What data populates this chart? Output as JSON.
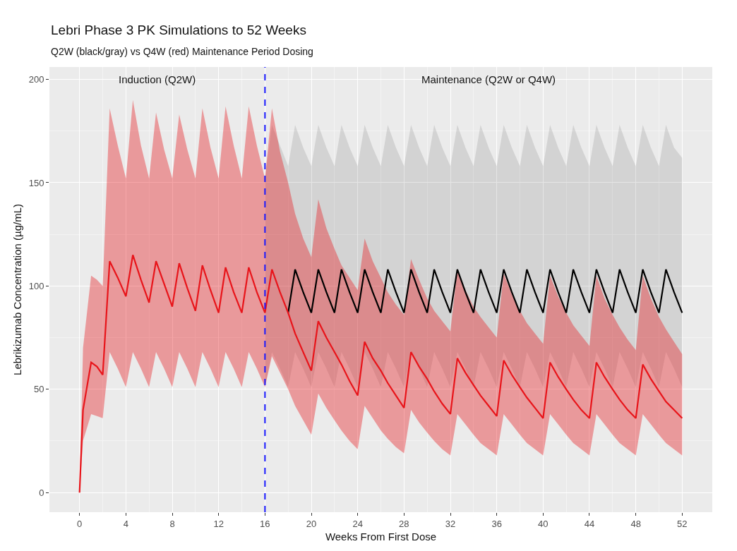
{
  "chart_data": {
    "type": "line",
    "title": "Lebri Phase 3 PK Simulations to 52 Weeks",
    "subtitle": "Q2W (black/gray) vs Q4W (red) Maintenance Period Dosing",
    "xlabel": "Weeks From First Dose",
    "ylabel": "Lebrikizumab Concentration (µg/mL)",
    "x": [
      0,
      0.3,
      1,
      1.5,
      2,
      2.6,
      3.3,
      4,
      4.6,
      5.3,
      6,
      6.6,
      7.3,
      8,
      8.6,
      9.3,
      10,
      10.6,
      11.3,
      12,
      12.6,
      13.3,
      14,
      14.6,
      15.3,
      16,
      16.6,
      17.3,
      18,
      18.6,
      19.3,
      20,
      20.6,
      21.3,
      22,
      22.6,
      23.3,
      24,
      24.6,
      25.3,
      26,
      26.6,
      27.3,
      28,
      28.6,
      29.3,
      30,
      30.6,
      31.3,
      32,
      32.6,
      33.3,
      34,
      34.6,
      35.3,
      36,
      36.6,
      37.3,
      38,
      38.6,
      39.3,
      40,
      40.6,
      41.3,
      42,
      42.6,
      43.3,
      44,
      44.6,
      45.3,
      46,
      46.6,
      47.3,
      48,
      48.6,
      49.3,
      50,
      50.6,
      51.3,
      52
    ],
    "series": [
      {
        "color": "#000000",
        "values": [
          null,
          null,
          null,
          null,
          null,
          null,
          null,
          null,
          null,
          null,
          null,
          null,
          null,
          null,
          null,
          null,
          null,
          null,
          null,
          null,
          null,
          null,
          null,
          null,
          null,
          null,
          null,
          null,
          87,
          108,
          97,
          87,
          108,
          97,
          87,
          108,
          97,
          87,
          108,
          97,
          87,
          108,
          97,
          87,
          108,
          97,
          87,
          108,
          97,
          87,
          108,
          97,
          87,
          108,
          97,
          87,
          108,
          97,
          87,
          108,
          97,
          87,
          108,
          97,
          87,
          108,
          97,
          87,
          108,
          97,
          87,
          108,
          97,
          87,
          108,
          97,
          87,
          108,
          97,
          87
        ],
        "upper": [
          null,
          null,
          null,
          null,
          null,
          null,
          null,
          null,
          null,
          null,
          null,
          null,
          null,
          null,
          null,
          null,
          null,
          null,
          null,
          null,
          null,
          null,
          null,
          null,
          null,
          152,
          178,
          168,
          158,
          178,
          167,
          158,
          178,
          167,
          158,
          178,
          167,
          158,
          178,
          167,
          158,
          178,
          167,
          158,
          178,
          167,
          158,
          178,
          167,
          158,
          178,
          167,
          158,
          178,
          167,
          158,
          178,
          167,
          158,
          178,
          167,
          158,
          178,
          167,
          158,
          178,
          167,
          158,
          178,
          167,
          158,
          178,
          167,
          158,
          178,
          167,
          158,
          178,
          167,
          162
        ],
        "lower": [
          null,
          null,
          null,
          null,
          null,
          null,
          null,
          null,
          null,
          null,
          null,
          null,
          null,
          null,
          null,
          null,
          null,
          null,
          null,
          null,
          null,
          null,
          null,
          null,
          null,
          51,
          68,
          60,
          51,
          68,
          60,
          51,
          68,
          60,
          51,
          68,
          60,
          51,
          68,
          60,
          51,
          68,
          60,
          51,
          68,
          60,
          51,
          68,
          60,
          51,
          68,
          60,
          51,
          68,
          60,
          51,
          68,
          60,
          51,
          68,
          60,
          51,
          68,
          60,
          51,
          68,
          60,
          51,
          68,
          60,
          51,
          68,
          60,
          51,
          68,
          60,
          51,
          68,
          60,
          51
        ]
      },
      {
        "color": "#e8141a",
        "values": [
          0,
          40,
          63,
          61,
          57,
          112,
          104,
          95,
          115,
          103,
          92,
          112,
          101,
          90,
          111,
          99,
          88,
          110,
          98,
          87,
          109,
          97,
          87,
          109,
          97,
          87,
          108,
          97,
          87,
          77,
          68,
          59,
          83,
          75,
          68,
          62,
          54,
          47,
          73,
          65,
          59,
          53,
          47,
          41,
          68,
          61,
          55,
          49,
          43,
          38,
          65,
          58,
          52,
          47,
          42,
          37,
          64,
          57,
          51,
          46,
          41,
          36,
          63,
          56,
          50,
          45,
          40,
          36,
          63,
          56,
          50,
          45,
          40,
          36,
          62,
          55,
          49,
          44,
          40,
          36
        ],
        "upper": [
          0,
          70,
          105,
          103,
          100,
          186,
          168,
          152,
          190,
          168,
          152,
          184,
          166,
          152,
          183,
          166,
          152,
          186,
          167,
          152,
          187,
          168,
          152,
          187,
          168,
          152,
          186,
          165,
          150,
          135,
          123,
          114,
          142,
          128,
          118,
          110,
          104,
          98,
          123,
          112,
          104,
          97,
          91,
          86,
          113,
          103,
          94,
          88,
          83,
          78,
          108,
          98,
          90,
          85,
          80,
          75,
          106,
          96,
          88,
          82,
          77,
          72,
          105,
          95,
          87,
          81,
          76,
          71,
          105,
          94,
          86,
          80,
          74,
          69,
          105,
          94,
          85,
          79,
          73,
          67
        ],
        "lower": [
          0,
          25,
          38,
          37,
          36,
          68,
          60,
          51,
          68,
          60,
          51,
          68,
          60,
          51,
          68,
          60,
          51,
          68,
          60,
          51,
          68,
          60,
          51,
          68,
          60,
          51,
          66,
          58,
          50,
          42,
          35,
          28,
          48,
          41,
          35,
          30,
          25,
          21,
          42,
          36,
          30,
          26,
          22,
          19,
          40,
          34,
          29,
          25,
          21,
          18,
          38,
          33,
          28,
          24,
          21,
          18,
          38,
          33,
          28,
          24,
          21,
          18,
          38,
          33,
          28,
          24,
          21,
          18,
          38,
          33,
          28,
          24,
          21,
          18,
          38,
          33,
          28,
          24,
          21,
          18
        ]
      }
    ],
    "xlim": [
      -2.6,
      54.6
    ],
    "ylim": [
      -9.5,
      206
    ],
    "xticks": [
      0,
      4,
      8,
      12,
      16,
      20,
      24,
      28,
      32,
      36,
      40,
      44,
      48,
      52
    ],
    "yticks": [
      0,
      50,
      100,
      150,
      200
    ],
    "ref_lines": [
      {
        "axis": "x",
        "value": 16,
        "color": "#1a1aff",
        "line_style": "dashed"
      }
    ],
    "annotations": [
      "Induction (Q2W)",
      "Maintenance (Q2W or Q4W)"
    ],
    "grid": true
  }
}
